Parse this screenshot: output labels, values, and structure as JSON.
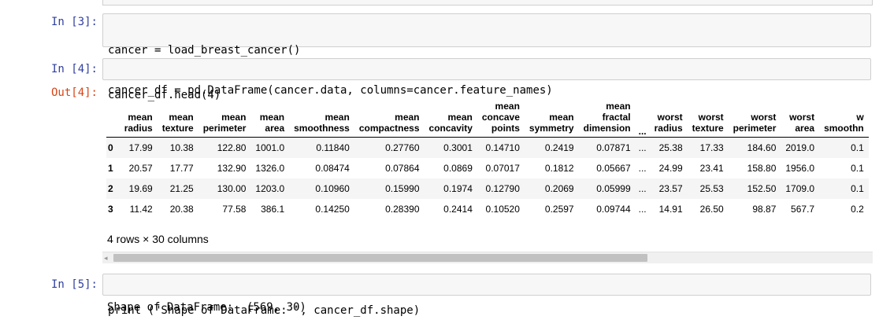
{
  "cells": [
    {
      "prompt": "In [3]:",
      "code": [
        "cancer = load_breast_cancer()",
        "cancer_df = pd.DataFrame(cancer.data, columns=cancer.feature_names)"
      ]
    },
    {
      "prompt": "In [4]:",
      "code": [
        "cancer_df.head(4)"
      ],
      "out_prompt": "Out[4]:",
      "table": {
        "columns": [
          [
            "mean",
            "radius"
          ],
          [
            "mean",
            "texture"
          ],
          [
            "mean",
            "perimeter"
          ],
          [
            "mean",
            "area"
          ],
          [
            "mean",
            "smoothness"
          ],
          [
            "mean",
            "compactness"
          ],
          [
            "mean",
            "concavity"
          ],
          [
            "mean",
            "concave",
            "points"
          ],
          [
            "mean",
            "symmetry"
          ],
          [
            "mean",
            "fractal",
            "dimension"
          ],
          [
            "..."
          ],
          [
            "worst",
            "radius"
          ],
          [
            "worst",
            "texture"
          ],
          [
            "worst",
            "perimeter"
          ],
          [
            "worst",
            "area"
          ],
          [
            "w",
            "smoothn"
          ]
        ],
        "rows": [
          {
            "index": "0",
            "values": [
              "17.99",
              "10.38",
              "122.80",
              "1001.0",
              "0.11840",
              "0.27760",
              "0.3001",
              "0.14710",
              "0.2419",
              "0.07871",
              "...",
              "25.38",
              "17.33",
              "184.60",
              "2019.0",
              "0.1"
            ]
          },
          {
            "index": "1",
            "values": [
              "20.57",
              "17.77",
              "132.90",
              "1326.0",
              "0.08474",
              "0.07864",
              "0.0869",
              "0.07017",
              "0.1812",
              "0.05667",
              "...",
              "24.99",
              "23.41",
              "158.80",
              "1956.0",
              "0.1"
            ]
          },
          {
            "index": "2",
            "values": [
              "19.69",
              "21.25",
              "130.00",
              "1203.0",
              "0.10960",
              "0.15990",
              "0.1974",
              "0.12790",
              "0.2069",
              "0.05999",
              "...",
              "23.57",
              "25.53",
              "152.50",
              "1709.0",
              "0.1"
            ]
          },
          {
            "index": "3",
            "values": [
              "11.42",
              "20.38",
              "77.58",
              "386.1",
              "0.14250",
              "0.28390",
              "0.2414",
              "0.10520",
              "0.2597",
              "0.09744",
              "...",
              "14.91",
              "26.50",
              "98.87",
              "567.7",
              "0.2"
            ]
          }
        ],
        "summary": "4 rows × 30 columns"
      }
    },
    {
      "prompt": "In [5]:",
      "code": [
        "print (\"Shape of DataFrame: \", cancer_df.shape)"
      ],
      "output": "Shape of DataFrame:  (569, 30)"
    }
  ],
  "colors": {
    "in_prompt": "#303f9f",
    "out_prompt": "#d84315",
    "cell_bg": "#f7f7f7",
    "cell_border": "#cfcfcf"
  }
}
